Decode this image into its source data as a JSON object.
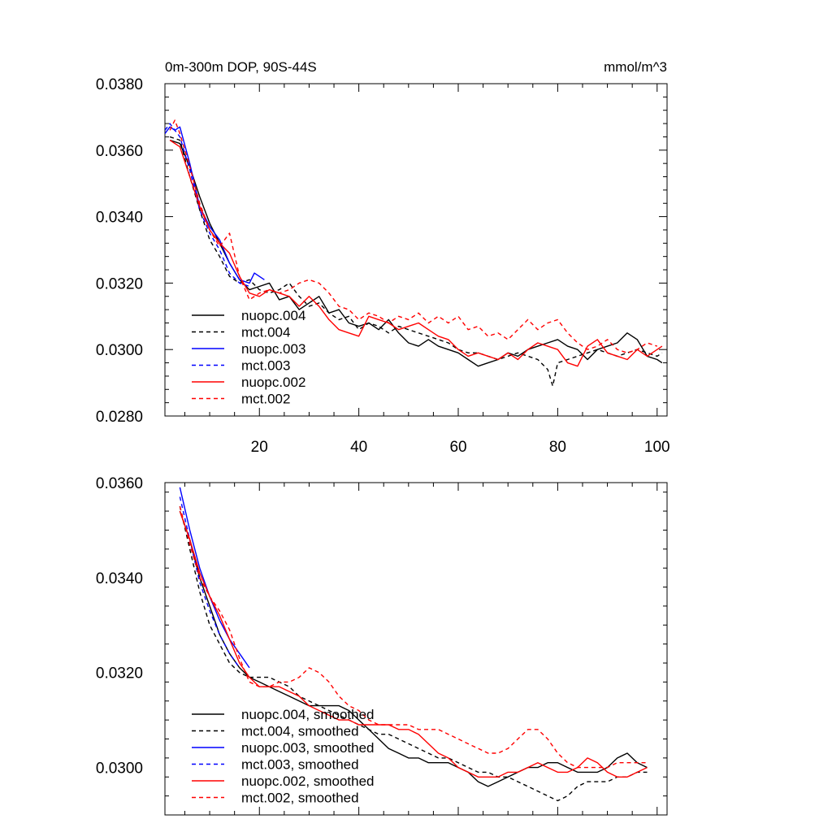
{
  "figure": {
    "title_left": "0m-300m DOP, 90S-44S",
    "title_right": "mmol/m^3"
  },
  "chart_data": [
    {
      "type": "line",
      "panel": "top",
      "xlim": [
        1,
        102
      ],
      "ylim": [
        0.028,
        0.038
      ],
      "xticks": [
        20,
        40,
        60,
        80,
        100
      ],
      "xtick_labels": [
        "20",
        "40",
        "60",
        "80",
        "100"
      ],
      "yticks": [
        0.028,
        0.03,
        0.032,
        0.034,
        0.036,
        0.038
      ],
      "ytick_labels": [
        "0.0280",
        "0.0300",
        "0.0320",
        "0.0340",
        "0.0360",
        "0.0380"
      ],
      "legend_position": "lower-left",
      "series": [
        {
          "name": "nuopc.004",
          "color": "#000000",
          "dash": "solid",
          "x": [
            2,
            4,
            6,
            8,
            10,
            12,
            14,
            16,
            18,
            20,
            22,
            24,
            26,
            28,
            30,
            32,
            34,
            36,
            38,
            40,
            42,
            44,
            46,
            48,
            50,
            52,
            54,
            56,
            58,
            60,
            62,
            64,
            66,
            68,
            70,
            72,
            74,
            76,
            78,
            80,
            82,
            84,
            86,
            88,
            90,
            92,
            94,
            96,
            98,
            100,
            101
          ],
          "y": [
            0.0363,
            0.0362,
            0.0355,
            0.0346,
            0.0338,
            0.0332,
            0.0326,
            0.0321,
            0.0318,
            0.0319,
            0.032,
            0.0315,
            0.0316,
            0.0312,
            0.0314,
            0.0316,
            0.0311,
            0.0312,
            0.0308,
            0.0307,
            0.0308,
            0.0306,
            0.0309,
            0.0305,
            0.0302,
            0.0301,
            0.0303,
            0.0301,
            0.03,
            0.0299,
            0.0297,
            0.0295,
            0.0296,
            0.0297,
            0.0299,
            0.0298,
            0.03,
            0.0301,
            0.0302,
            0.0303,
            0.0301,
            0.03,
            0.0297,
            0.03,
            0.0301,
            0.0302,
            0.0305,
            0.0303,
            0.0298,
            0.0297,
            0.0296
          ]
        },
        {
          "name": "mct.004",
          "color": "#000000",
          "dash": "dashed",
          "x": [
            2,
            4,
            6,
            8,
            10,
            12,
            14,
            16,
            18,
            20,
            22,
            24,
            26,
            28,
            30,
            32,
            34,
            36,
            38,
            40,
            42,
            44,
            46,
            48,
            50,
            52,
            54,
            56,
            58,
            60,
            62,
            64,
            66,
            68,
            70,
            72,
            74,
            76,
            78,
            79,
            80,
            82,
            84,
            86,
            88,
            90,
            92,
            94,
            96,
            98,
            100,
            101
          ],
          "y": [
            0.0364,
            0.0363,
            0.0352,
            0.0342,
            0.0333,
            0.0328,
            0.0322,
            0.032,
            0.0321,
            0.0318,
            0.0317,
            0.0318,
            0.032,
            0.0316,
            0.0313,
            0.0314,
            0.0311,
            0.0309,
            0.031,
            0.0306,
            0.0308,
            0.0307,
            0.0305,
            0.0307,
            0.0306,
            0.0305,
            0.0304,
            0.0303,
            0.0302,
            0.03,
            0.0299,
            0.0299,
            0.0298,
            0.0297,
            0.0298,
            0.0299,
            0.0298,
            0.0297,
            0.0294,
            0.0289,
            0.0296,
            0.0297,
            0.0298,
            0.0299,
            0.03,
            0.0299,
            0.0298,
            0.0299,
            0.03,
            0.0299,
            0.0298,
            0.0299
          ]
        },
        {
          "name": "nuopc.003",
          "color": "#0000ff",
          "dash": "solid",
          "x": [
            1,
            2,
            3,
            4,
            6,
            8,
            10,
            12,
            14,
            16,
            18,
            19,
            21
          ],
          "y": [
            0.0365,
            0.0367,
            0.0366,
            0.0367,
            0.0356,
            0.0343,
            0.0337,
            0.0333,
            0.0326,
            0.0321,
            0.032,
            0.0323,
            0.0321
          ]
        },
        {
          "name": "mct.003",
          "color": "#0000ff",
          "dash": "dashed",
          "x": [
            1,
            2,
            3,
            4,
            6,
            8,
            10,
            12,
            14,
            16,
            18
          ],
          "y": [
            0.0366,
            0.0368,
            0.0366,
            0.0364,
            0.0354,
            0.0342,
            0.0335,
            0.033,
            0.0323,
            0.032,
            0.0319
          ]
        },
        {
          "name": "nuopc.002",
          "color": "#ff0000",
          "dash": "solid",
          "x": [
            2,
            4,
            6,
            8,
            10,
            12,
            14,
            16,
            18,
            20,
            22,
            24,
            26,
            28,
            30,
            32,
            34,
            36,
            38,
            40,
            42,
            44,
            46,
            48,
            50,
            52,
            54,
            56,
            58,
            60,
            62,
            64,
            66,
            68,
            70,
            72,
            74,
            76,
            78,
            80,
            82,
            84,
            86,
            88,
            90,
            92,
            94,
            96,
            98,
            100,
            101
          ],
          "y": [
            0.0363,
            0.0361,
            0.0352,
            0.0343,
            0.0336,
            0.0332,
            0.0329,
            0.0322,
            0.0317,
            0.0316,
            0.0318,
            0.0317,
            0.0316,
            0.0313,
            0.0316,
            0.0313,
            0.0309,
            0.0306,
            0.0305,
            0.0304,
            0.031,
            0.0309,
            0.0308,
            0.0306,
            0.0307,
            0.0308,
            0.0306,
            0.0304,
            0.0303,
            0.03,
            0.0298,
            0.0299,
            0.0298,
            0.0297,
            0.0299,
            0.0297,
            0.03,
            0.0302,
            0.0301,
            0.03,
            0.0296,
            0.0295,
            0.0301,
            0.0303,
            0.0299,
            0.0298,
            0.0297,
            0.03,
            0.0298,
            0.03,
            0.0301
          ]
        },
        {
          "name": "mct.002",
          "color": "#ff0000",
          "dash": "dashed",
          "x": [
            2,
            3,
            4,
            6,
            8,
            10,
            12,
            14,
            16,
            18,
            20,
            22,
            24,
            26,
            28,
            30,
            32,
            34,
            36,
            38,
            40,
            42,
            44,
            46,
            48,
            50,
            52,
            54,
            56,
            58,
            60,
            62,
            64,
            66,
            68,
            70,
            72,
            74,
            76,
            78,
            80,
            82,
            84,
            86,
            88,
            90,
            92,
            94,
            96,
            98,
            100
          ],
          "y": [
            0.0366,
            0.0369,
            0.0365,
            0.0355,
            0.0344,
            0.0336,
            0.0331,
            0.0335,
            0.0322,
            0.0315,
            0.0317,
            0.0318,
            0.0317,
            0.0318,
            0.032,
            0.0321,
            0.032,
            0.0317,
            0.0313,
            0.0312,
            0.0309,
            0.0311,
            0.031,
            0.0308,
            0.031,
            0.0309,
            0.0311,
            0.0308,
            0.031,
            0.0308,
            0.031,
            0.0306,
            0.0307,
            0.0304,
            0.0305,
            0.0303,
            0.0306,
            0.0309,
            0.0306,
            0.0308,
            0.0309,
            0.0305,
            0.0302,
            0.03,
            0.0301,
            0.0303,
            0.03,
            0.0299,
            0.03,
            0.0302,
            0.0301
          ]
        }
      ]
    },
    {
      "type": "line",
      "panel": "bottom",
      "xlim": [
        1,
        102
      ],
      "ylim": [
        0.029,
        0.036
      ],
      "xticks": [
        20,
        40,
        60,
        80,
        100
      ],
      "xtick_labels": [],
      "yticks": [
        0.03,
        0.032,
        0.034,
        0.036
      ],
      "ytick_labels": [
        "0.0300",
        "0.0320",
        "0.0340",
        "0.0360"
      ],
      "legend_position": "lower-left",
      "series": [
        {
          "name": "nuopc.004, smoothed",
          "color": "#000000",
          "dash": "solid",
          "x": [
            4,
            6,
            8,
            10,
            12,
            14,
            16,
            18,
            20,
            22,
            24,
            26,
            28,
            30,
            32,
            34,
            36,
            38,
            40,
            42,
            44,
            46,
            48,
            50,
            52,
            54,
            56,
            58,
            60,
            62,
            64,
            66,
            68,
            70,
            72,
            74,
            76,
            78,
            80,
            82,
            84,
            86,
            88,
            90,
            92,
            94,
            96,
            98
          ],
          "y": [
            0.0354,
            0.0348,
            0.034,
            0.0334,
            0.0328,
            0.0324,
            0.0321,
            0.0319,
            0.0318,
            0.0317,
            0.0316,
            0.0315,
            0.0314,
            0.0313,
            0.0313,
            0.0313,
            0.0313,
            0.0312,
            0.031,
            0.0308,
            0.0306,
            0.0304,
            0.0303,
            0.0302,
            0.0302,
            0.0301,
            0.0301,
            0.0301,
            0.03,
            0.0299,
            0.0297,
            0.0296,
            0.0297,
            0.0298,
            0.0299,
            0.03,
            0.03,
            0.0301,
            0.0301,
            0.03,
            0.0299,
            0.0299,
            0.0299,
            0.03,
            0.0302,
            0.0303,
            0.0301,
            0.03
          ]
        },
        {
          "name": "mct.004, smoothed",
          "color": "#000000",
          "dash": "dashed",
          "x": [
            4,
            6,
            8,
            10,
            12,
            14,
            16,
            18,
            20,
            22,
            24,
            26,
            28,
            30,
            32,
            34,
            36,
            38,
            40,
            42,
            44,
            46,
            48,
            50,
            52,
            54,
            56,
            58,
            60,
            62,
            64,
            66,
            68,
            70,
            72,
            74,
            76,
            78,
            80,
            82,
            84,
            86,
            88,
            90,
            92,
            94,
            96,
            98
          ],
          "y": [
            0.0355,
            0.0346,
            0.0337,
            0.033,
            0.0326,
            0.0322,
            0.032,
            0.0319,
            0.0319,
            0.0319,
            0.0318,
            0.0317,
            0.0315,
            0.0314,
            0.0313,
            0.0312,
            0.0311,
            0.031,
            0.0309,
            0.0308,
            0.0307,
            0.0307,
            0.0306,
            0.0305,
            0.0304,
            0.0303,
            0.0302,
            0.0302,
            0.0301,
            0.03,
            0.0299,
            0.0299,
            0.0298,
            0.0298,
            0.0297,
            0.0296,
            0.0295,
            0.0294,
            0.0293,
            0.0294,
            0.0296,
            0.0297,
            0.0297,
            0.0297,
            0.0298,
            0.0298,
            0.0299,
            0.0299
          ]
        },
        {
          "name": "nuopc.003, smoothed",
          "color": "#0000ff",
          "dash": "solid",
          "x": [
            4,
            6,
            8,
            10,
            12,
            14,
            16,
            18
          ],
          "y": [
            0.0359,
            0.035,
            0.0342,
            0.0336,
            0.0331,
            0.0327,
            0.0324,
            0.0321
          ]
        },
        {
          "name": "mct.003, smoothed",
          "color": "#0000ff",
          "dash": "dashed",
          "x": [
            4,
            6,
            8,
            10,
            12,
            14,
            16
          ],
          "y": [
            0.0357,
            0.0348,
            0.0339,
            0.0333,
            0.0328,
            0.0324,
            0.0321
          ]
        },
        {
          "name": "nuopc.002, smoothed",
          "color": "#ff0000",
          "dash": "solid",
          "x": [
            4,
            6,
            8,
            10,
            12,
            14,
            16,
            18,
            20,
            22,
            24,
            26,
            28,
            30,
            32,
            34,
            36,
            38,
            40,
            42,
            44,
            46,
            48,
            50,
            52,
            54,
            56,
            58,
            60,
            62,
            64,
            66,
            68,
            70,
            72,
            74,
            76,
            78,
            80,
            82,
            84,
            86,
            88,
            90,
            92,
            94,
            96,
            98
          ],
          "y": [
            0.0354,
            0.0348,
            0.0341,
            0.0336,
            0.0332,
            0.0327,
            0.0322,
            0.0319,
            0.0317,
            0.0317,
            0.0317,
            0.0316,
            0.0315,
            0.0313,
            0.0312,
            0.0311,
            0.031,
            0.031,
            0.0309,
            0.0309,
            0.0309,
            0.0309,
            0.0308,
            0.0308,
            0.0307,
            0.0305,
            0.0303,
            0.0302,
            0.03,
            0.0299,
            0.0298,
            0.0298,
            0.0298,
            0.0299,
            0.0299,
            0.03,
            0.0301,
            0.03,
            0.0299,
            0.0299,
            0.03,
            0.0302,
            0.0301,
            0.0299,
            0.0298,
            0.0298,
            0.0299,
            0.03
          ]
        },
        {
          "name": "mct.002, smoothed",
          "color": "#ff0000",
          "dash": "dashed",
          "x": [
            4,
            6,
            8,
            10,
            12,
            14,
            16,
            18,
            20,
            22,
            24,
            26,
            28,
            30,
            32,
            34,
            36,
            38,
            40,
            42,
            44,
            46,
            48,
            50,
            52,
            54,
            56,
            58,
            60,
            62,
            64,
            66,
            68,
            70,
            72,
            74,
            76,
            78,
            80,
            82,
            84,
            86,
            88,
            90,
            92,
            94,
            96,
            98
          ],
          "y": [
            0.0355,
            0.0347,
            0.034,
            0.0336,
            0.0333,
            0.0329,
            0.0323,
            0.0318,
            0.0317,
            0.0317,
            0.0318,
            0.0318,
            0.0319,
            0.0321,
            0.032,
            0.0318,
            0.0315,
            0.0313,
            0.0312,
            0.031,
            0.0309,
            0.0309,
            0.0309,
            0.0309,
            0.0308,
            0.0308,
            0.0308,
            0.0307,
            0.0306,
            0.0305,
            0.0304,
            0.0303,
            0.0303,
            0.0304,
            0.0306,
            0.0308,
            0.0308,
            0.0306,
            0.0303,
            0.0301,
            0.03,
            0.03,
            0.03,
            0.03,
            0.0301,
            0.0301,
            0.0301,
            0.0301
          ]
        }
      ]
    }
  ]
}
